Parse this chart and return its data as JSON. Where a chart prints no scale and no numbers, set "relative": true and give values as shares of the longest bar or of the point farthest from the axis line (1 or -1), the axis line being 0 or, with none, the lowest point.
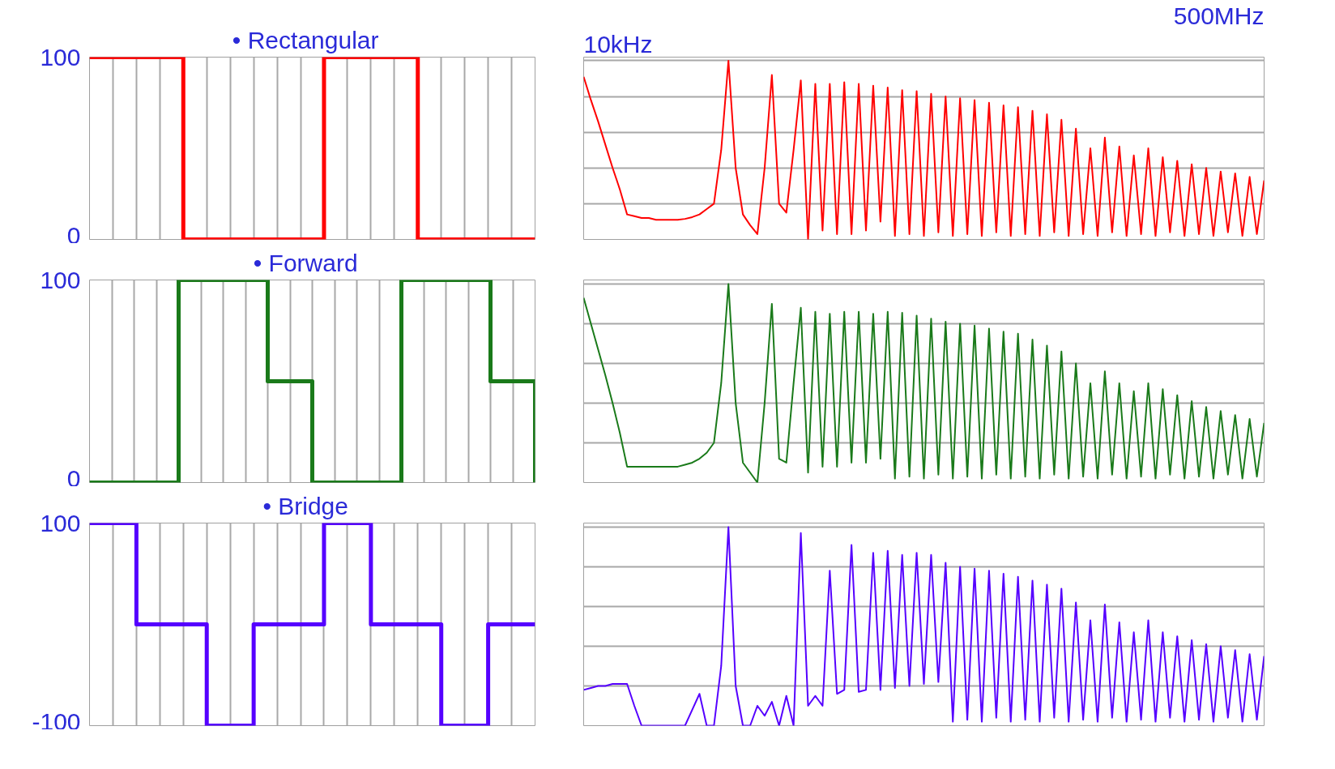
{
  "chart_data": [
    {
      "type": "step",
      "title": "•   Rectangular",
      "categories": [
        null,
        null,
        null,
        null,
        null,
        null,
        null,
        null,
        null,
        null,
        null,
        null,
        null,
        null,
        null,
        null,
        null,
        null,
        null,
        null
      ],
      "series": [
        {
          "color": "#ff0000",
          "values": [
            100,
            100,
            100,
            100,
            0,
            0,
            0,
            0,
            0,
            0,
            100,
            100,
            100,
            100,
            0,
            0,
            0,
            0,
            0,
            0
          ]
        }
      ],
      "ylim": [
        0,
        100
      ],
      "yticks": [
        0,
        100
      ],
      "grid": true,
      "tick_labels": "y"
    },
    {
      "type": "line",
      "relative": true,
      "grid": "y",
      "tick_labels": false,
      "annotations": [
        "10kHz",
        "500MHz"
      ],
      "categories": [
        null,
        null,
        null,
        null,
        null,
        null,
        null,
        null,
        null,
        null,
        null,
        null,
        null,
        null,
        null,
        null,
        null,
        null,
        null,
        null,
        null,
        null,
        null,
        null,
        null,
        null,
        null,
        null,
        null,
        null,
        null,
        null,
        null,
        null,
        null,
        null,
        null,
        null,
        null,
        null,
        null,
        null,
        null,
        null,
        null,
        null,
        null,
        null,
        null,
        null,
        null,
        null,
        null,
        null,
        null,
        null,
        null,
        null,
        null,
        null,
        null,
        null,
        null,
        null,
        null,
        null,
        null,
        null,
        null,
        null,
        null,
        null,
        null,
        null,
        null,
        null,
        null,
        null,
        null,
        null,
        null,
        null,
        null,
        null,
        null,
        null,
        null,
        null,
        null,
        null,
        null,
        null,
        null,
        null,
        null
      ],
      "series": [
        {
          "color": "#ff0000",
          "values": [
            0.91,
            0.78,
            0.66,
            0.53,
            0.4,
            0.28,
            0.14,
            0.13,
            0.12,
            0.12,
            0.11,
            0.11,
            0.11,
            0.11,
            0.115,
            0.125,
            0.14,
            0.17,
            0.2,
            0.5,
            1.0,
            0.4,
            0.14,
            0.08,
            0.03,
            0.4,
            0.92,
            0.2,
            0.15,
            0.5,
            0.89,
            0.0,
            0.87,
            0.05,
            0.87,
            0.03,
            0.88,
            0.03,
            0.87,
            0.05,
            0.86,
            0.1,
            0.85,
            0.02,
            0.835,
            0.03,
            0.83,
            0.02,
            0.815,
            0.04,
            0.8,
            0.02,
            0.79,
            0.03,
            0.78,
            0.02,
            0.765,
            0.04,
            0.75,
            0.02,
            0.74,
            0.03,
            0.72,
            0.02,
            0.7,
            0.04,
            0.67,
            0.02,
            0.62,
            0.03,
            0.51,
            0.02,
            0.57,
            0.04,
            0.52,
            0.02,
            0.47,
            0.03,
            0.51,
            0.02,
            0.46,
            0.04,
            0.44,
            0.02,
            0.42,
            0.03,
            0.4,
            0.02,
            0.38,
            0.04,
            0.37,
            0.02,
            0.35,
            0.03,
            0.33
          ]
        }
      ]
    },
    {
      "type": "step",
      "title": "•   Forward",
      "categories": [
        null,
        null,
        null,
        null,
        null,
        null,
        null,
        null,
        null,
        null,
        null,
        null,
        null,
        null,
        null,
        null,
        null,
        null,
        null,
        null,
        null
      ],
      "series": [
        {
          "color": "#1a7a1a",
          "values": [
            0,
            0,
            0,
            0,
            100,
            100,
            100,
            100,
            50,
            50,
            0,
            0,
            0,
            0,
            100,
            100,
            100,
            100,
            50,
            50,
            0
          ]
        }
      ],
      "ylim": [
        0,
        100
      ],
      "yticks": [
        0,
        100
      ],
      "grid": true,
      "tick_labels": "y"
    },
    {
      "type": "line",
      "relative": true,
      "grid": "y",
      "tick_labels": false,
      "categories": [
        null,
        null,
        null,
        null,
        null,
        null,
        null,
        null,
        null,
        null,
        null,
        null,
        null,
        null,
        null,
        null,
        null,
        null,
        null,
        null,
        null,
        null,
        null,
        null,
        null,
        null,
        null,
        null,
        null,
        null,
        null,
        null,
        null,
        null,
        null,
        null,
        null,
        null,
        null,
        null,
        null,
        null,
        null,
        null,
        null,
        null,
        null,
        null,
        null,
        null,
        null,
        null,
        null,
        null,
        null,
        null,
        null,
        null,
        null,
        null,
        null,
        null,
        null,
        null,
        null,
        null,
        null,
        null,
        null,
        null,
        null,
        null,
        null,
        null,
        null,
        null,
        null,
        null,
        null,
        null,
        null,
        null,
        null,
        null,
        null,
        null,
        null,
        null,
        null,
        null,
        null,
        null,
        null,
        null,
        null
      ],
      "series": [
        {
          "color": "#1a7a1a",
          "values": [
            0.93,
            0.8,
            0.67,
            0.54,
            0.4,
            0.25,
            0.08,
            0.08,
            0.08,
            0.08,
            0.08,
            0.08,
            0.08,
            0.08,
            0.09,
            0.1,
            0.12,
            0.15,
            0.2,
            0.5,
            1.0,
            0.4,
            0.1,
            0.05,
            0.0,
            0.4,
            0.9,
            0.12,
            0.1,
            0.5,
            0.88,
            0.05,
            0.86,
            0.08,
            0.85,
            0.08,
            0.86,
            0.1,
            0.86,
            0.1,
            0.85,
            0.12,
            0.86,
            0.02,
            0.855,
            0.03,
            0.84,
            0.02,
            0.825,
            0.04,
            0.81,
            0.02,
            0.8,
            0.03,
            0.79,
            0.02,
            0.775,
            0.04,
            0.76,
            0.02,
            0.75,
            0.03,
            0.72,
            0.02,
            0.69,
            0.04,
            0.66,
            0.02,
            0.6,
            0.03,
            0.5,
            0.02,
            0.56,
            0.04,
            0.5,
            0.02,
            0.46,
            0.03,
            0.5,
            0.02,
            0.47,
            0.04,
            0.44,
            0.02,
            0.41,
            0.03,
            0.38,
            0.02,
            0.36,
            0.04,
            0.34,
            0.02,
            0.32,
            0.03,
            0.3
          ]
        }
      ]
    },
    {
      "type": "step",
      "title": "•   Bridge",
      "categories": [
        null,
        null,
        null,
        null,
        null,
        null,
        null,
        null,
        null,
        null,
        null,
        null,
        null,
        null,
        null,
        null,
        null,
        null,
        null,
        null
      ],
      "series": [
        {
          "color": "#5500ff",
          "values": [
            100,
            100,
            0,
            0,
            0,
            -100,
            -100,
            0,
            0,
            0,
            100,
            100,
            0,
            0,
            0,
            -100,
            -100,
            0,
            0,
            0
          ]
        }
      ],
      "ylim": [
        -100,
        100
      ],
      "yticks": [
        -100,
        100
      ],
      "grid": true,
      "tick_labels": "y"
    },
    {
      "type": "line",
      "relative": true,
      "grid": "y",
      "tick_labels": false,
      "categories": [
        null,
        null,
        null,
        null,
        null,
        null,
        null,
        null,
        null,
        null,
        null,
        null,
        null,
        null,
        null,
        null,
        null,
        null,
        null,
        null,
        null,
        null,
        null,
        null,
        null,
        null,
        null,
        null,
        null,
        null,
        null,
        null,
        null,
        null,
        null,
        null,
        null,
        null,
        null,
        null,
        null,
        null,
        null,
        null,
        null,
        null,
        null,
        null,
        null,
        null,
        null,
        null,
        null,
        null,
        null,
        null,
        null,
        null,
        null,
        null,
        null,
        null,
        null,
        null,
        null,
        null,
        null,
        null,
        null,
        null,
        null,
        null,
        null,
        null,
        null,
        null,
        null,
        null,
        null,
        null,
        null,
        null,
        null,
        null,
        null,
        null,
        null,
        null,
        null,
        null,
        null,
        null,
        null,
        null,
        null
      ],
      "series": [
        {
          "color": "#5500ff",
          "values": [
            0.18,
            0.19,
            0.2,
            0.2,
            0.21,
            0.21,
            0.21,
            0.1,
            0.0,
            0,
            0,
            0,
            0,
            0,
            0,
            0.08,
            0.16,
            0.0,
            0.0,
            0.3,
            1.0,
            0.2,
            0.0,
            0.0,
            0.1,
            0.05,
            0.12,
            0.0,
            0.15,
            0.0,
            0.97,
            0.1,
            0.15,
            0.1,
            0.78,
            0.16,
            0.18,
            0.91,
            0.17,
            0.18,
            0.87,
            0.18,
            0.88,
            0.19,
            0.86,
            0.2,
            0.87,
            0.21,
            0.86,
            0.22,
            0.82,
            0.02,
            0.8,
            0.03,
            0.79,
            0.02,
            0.78,
            0.04,
            0.765,
            0.02,
            0.75,
            0.03,
            0.73,
            0.02,
            0.71,
            0.04,
            0.69,
            0.02,
            0.62,
            0.03,
            0.53,
            0.02,
            0.61,
            0.04,
            0.52,
            0.02,
            0.47,
            0.03,
            0.53,
            0.02,
            0.47,
            0.04,
            0.45,
            0.02,
            0.43,
            0.03,
            0.41,
            0.02,
            0.4,
            0.04,
            0.38,
            0.02,
            0.36,
            0.03,
            0.35
          ]
        }
      ]
    }
  ]
}
